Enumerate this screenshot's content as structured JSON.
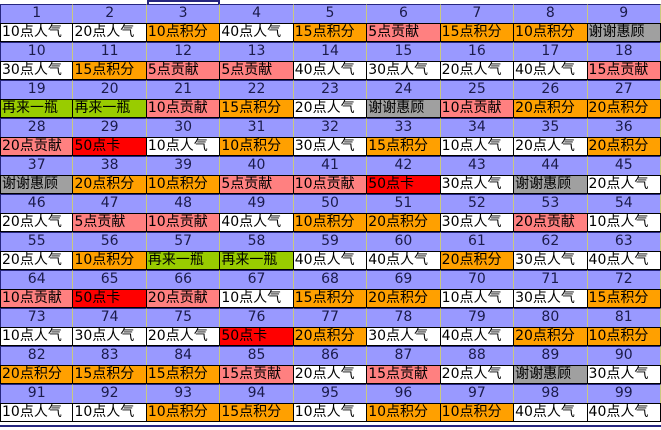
{
  "grid": {
    "columns": 9,
    "colors": {
      "purple": "#9999FF",
      "navy_border": "#26267F",
      "pale_border": "#C9C97F",
      "white": "#FFFFFF",
      "orange": "#FFA000",
      "pink": "#FF8080",
      "red": "#FF0000",
      "green": "#99CC00",
      "gray": "#A0A0A0"
    },
    "cells": [
      {
        "n": "1",
        "label": "10点人气",
        "color": "white"
      },
      {
        "n": "2",
        "label": "20点人气",
        "color": "white"
      },
      {
        "n": "3",
        "label": "10点积分",
        "color": "orange"
      },
      {
        "n": "4",
        "label": "40点人气",
        "color": "white"
      },
      {
        "n": "5",
        "label": "15点积分",
        "color": "orange"
      },
      {
        "n": "6",
        "label": "5点贡献",
        "color": "pink"
      },
      {
        "n": "7",
        "label": "15点积分",
        "color": "orange"
      },
      {
        "n": "8",
        "label": "10点积分",
        "color": "orange"
      },
      {
        "n": "9",
        "label": "谢谢惠顾",
        "color": "gray"
      },
      {
        "n": "10",
        "label": "30点人气",
        "color": "white"
      },
      {
        "n": "11",
        "label": "15点积分",
        "color": "orange"
      },
      {
        "n": "12",
        "label": "5点贡献",
        "color": "pink"
      },
      {
        "n": "13",
        "label": "5点贡献",
        "color": "pink"
      },
      {
        "n": "14",
        "label": "40点人气",
        "color": "white"
      },
      {
        "n": "15",
        "label": "30点人气",
        "color": "white"
      },
      {
        "n": "16",
        "label": "20点人气",
        "color": "white"
      },
      {
        "n": "17",
        "label": "40点人气",
        "color": "white"
      },
      {
        "n": "18",
        "label": "15点贡献",
        "color": "pink"
      },
      {
        "n": "19",
        "label": "再来一瓶",
        "color": "green"
      },
      {
        "n": "20",
        "label": "再来一瓶",
        "color": "green"
      },
      {
        "n": "21",
        "label": "10点贡献",
        "color": "pink"
      },
      {
        "n": "22",
        "label": "15点积分",
        "color": "orange"
      },
      {
        "n": "23",
        "label": "20点人气",
        "color": "white"
      },
      {
        "n": "24",
        "label": "谢谢惠顾",
        "color": "gray"
      },
      {
        "n": "25",
        "label": "10点贡献",
        "color": "pink"
      },
      {
        "n": "26",
        "label": "20点积分",
        "color": "orange"
      },
      {
        "n": "27",
        "label": "20点积分",
        "color": "orange"
      },
      {
        "n": "28",
        "label": "20点贡献",
        "color": "pink"
      },
      {
        "n": "29",
        "label": "50点卡",
        "color": "red"
      },
      {
        "n": "30",
        "label": "10点人气",
        "color": "white"
      },
      {
        "n": "31",
        "label": "10点积分",
        "color": "orange"
      },
      {
        "n": "32",
        "label": "30点人气",
        "color": "white"
      },
      {
        "n": "33",
        "label": "15点积分",
        "color": "orange"
      },
      {
        "n": "34",
        "label": "10点人气",
        "color": "white"
      },
      {
        "n": "35",
        "label": "20点人气",
        "color": "white"
      },
      {
        "n": "36",
        "label": "20点积分",
        "color": "orange"
      },
      {
        "n": "37",
        "label": "谢谢惠顾",
        "color": "gray"
      },
      {
        "n": "38",
        "label": "20点积分",
        "color": "orange"
      },
      {
        "n": "39",
        "label": "10点积分",
        "color": "orange"
      },
      {
        "n": "40",
        "label": "5点贡献",
        "color": "pink"
      },
      {
        "n": "41",
        "label": "10点贡献",
        "color": "pink"
      },
      {
        "n": "42",
        "label": "50点卡",
        "color": "red"
      },
      {
        "n": "43",
        "label": "30点人气",
        "color": "white"
      },
      {
        "n": "44",
        "label": "谢谢惠顾",
        "color": "gray"
      },
      {
        "n": "45",
        "label": "20点人气",
        "color": "white"
      },
      {
        "n": "46",
        "label": "20点人气",
        "color": "white"
      },
      {
        "n": "47",
        "label": "5点贡献",
        "color": "pink"
      },
      {
        "n": "48",
        "label": "10点贡献",
        "color": "pink"
      },
      {
        "n": "49",
        "label": "40点人气",
        "color": "white"
      },
      {
        "n": "50",
        "label": "10点积分",
        "color": "orange"
      },
      {
        "n": "51",
        "label": "20点积分",
        "color": "orange"
      },
      {
        "n": "52",
        "label": "30点人气",
        "color": "white"
      },
      {
        "n": "53",
        "label": "20点贡献",
        "color": "pink"
      },
      {
        "n": "54",
        "label": "10点人气",
        "color": "white"
      },
      {
        "n": "55",
        "label": "20点人气",
        "color": "white"
      },
      {
        "n": "56",
        "label": "10点积分",
        "color": "orange"
      },
      {
        "n": "57",
        "label": "再来一瓶",
        "color": "green"
      },
      {
        "n": "58",
        "label": "再来一瓶",
        "color": "green"
      },
      {
        "n": "59",
        "label": "40点人气",
        "color": "white"
      },
      {
        "n": "60",
        "label": "40点人气",
        "color": "white"
      },
      {
        "n": "61",
        "label": "20点积分",
        "color": "orange"
      },
      {
        "n": "62",
        "label": "30点人气",
        "color": "white"
      },
      {
        "n": "63",
        "label": "40点人气",
        "color": "white"
      },
      {
        "n": "64",
        "label": "10点贡献",
        "color": "pink"
      },
      {
        "n": "65",
        "label": "50点卡",
        "color": "red"
      },
      {
        "n": "66",
        "label": "20点贡献",
        "color": "pink"
      },
      {
        "n": "67",
        "label": "10点人气",
        "color": "white"
      },
      {
        "n": "68",
        "label": "15点积分",
        "color": "orange"
      },
      {
        "n": "69",
        "label": "20点积分",
        "color": "orange"
      },
      {
        "n": "70",
        "label": "10点人气",
        "color": "white"
      },
      {
        "n": "71",
        "label": "30点人气",
        "color": "white"
      },
      {
        "n": "72",
        "label": "15点积分",
        "color": "orange"
      },
      {
        "n": "73",
        "label": "10点人气",
        "color": "white"
      },
      {
        "n": "74",
        "label": "30点人气",
        "color": "white"
      },
      {
        "n": "75",
        "label": "20点人气",
        "color": "white"
      },
      {
        "n": "76",
        "label": "50点卡",
        "color": "red"
      },
      {
        "n": "77",
        "label": "20点积分",
        "color": "orange"
      },
      {
        "n": "78",
        "label": "30点人气",
        "color": "white"
      },
      {
        "n": "79",
        "label": "40点人气",
        "color": "white"
      },
      {
        "n": "80",
        "label": "20点积分",
        "color": "orange"
      },
      {
        "n": "81",
        "label": "10点积分",
        "color": "orange"
      },
      {
        "n": "82",
        "label": "20点积分",
        "color": "orange"
      },
      {
        "n": "83",
        "label": "15点积分",
        "color": "orange"
      },
      {
        "n": "84",
        "label": "15点积分",
        "color": "orange"
      },
      {
        "n": "85",
        "label": "15点贡献",
        "color": "pink"
      },
      {
        "n": "86",
        "label": "20点人气",
        "color": "white"
      },
      {
        "n": "87",
        "label": "15点贡献",
        "color": "pink"
      },
      {
        "n": "88",
        "label": "20点人气",
        "color": "white"
      },
      {
        "n": "89",
        "label": "谢谢惠顾",
        "color": "gray"
      },
      {
        "n": "90",
        "label": "30点人气",
        "color": "white"
      },
      {
        "n": "91",
        "label": "10点人气",
        "color": "white"
      },
      {
        "n": "92",
        "label": "10点人气",
        "color": "white"
      },
      {
        "n": "93",
        "label": "10点积分",
        "color": "orange"
      },
      {
        "n": "94",
        "label": "15点积分",
        "color": "orange"
      },
      {
        "n": "95",
        "label": "10点人气",
        "color": "white"
      },
      {
        "n": "96",
        "label": "10点积分",
        "color": "orange"
      },
      {
        "n": "97",
        "label": "10点积分",
        "color": "orange"
      },
      {
        "n": "98",
        "label": "40点人气",
        "color": "white"
      },
      {
        "n": "99",
        "label": "40点人气",
        "color": "white"
      }
    ]
  }
}
